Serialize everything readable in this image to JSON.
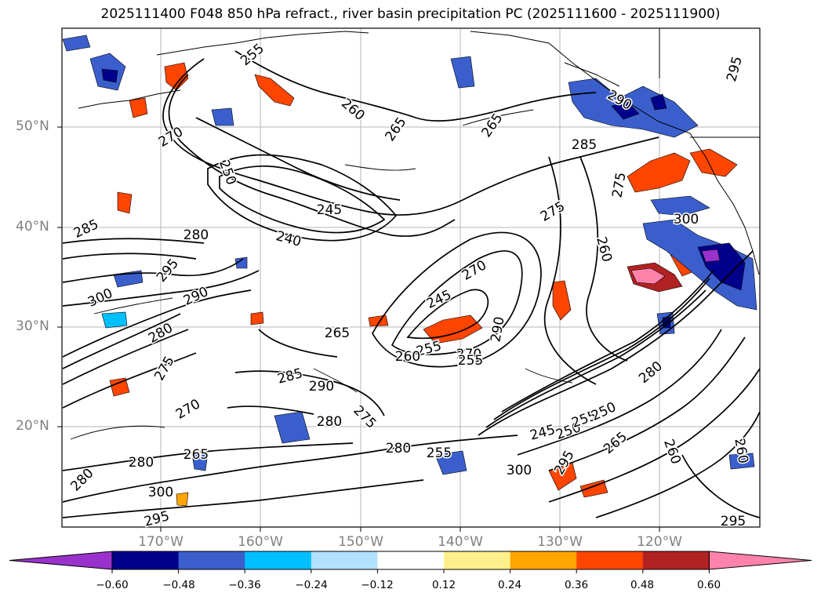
{
  "title": "2025111400 F048 850 hPa refract., river basin precipitation PC (2025111600 - 2025111900)",
  "lat_labels": [
    "50°N",
    "40°N",
    "30°N",
    "20°N"
  ],
  "lon_labels": [
    "170°W",
    "160°W",
    "150°W",
    "140°W",
    "130°W",
    "120°W"
  ],
  "colorbar": {
    "ticks": [
      "−0.60",
      "−0.48",
      "−0.36",
      "−0.24",
      "−0.12",
      "0.12",
      "0.24",
      "0.36",
      "0.48",
      "0.60"
    ],
    "colors": [
      "#9932cc",
      "#00008b",
      "#3a5fcd",
      "#00bfff",
      "#b0e2ff",
      "#ffffff",
      "#fff08c",
      "#ffa500",
      "#ff4500",
      "#b22222",
      "#ff82ab"
    ]
  },
  "contour_labels": [
    "255",
    "260",
    "265",
    "270",
    "250",
    "245",
    "240",
    "265",
    "285",
    "295",
    "300",
    "290",
    "280",
    "275",
    "270",
    "285",
    "290",
    "280",
    "275",
    "280",
    "300",
    "295",
    "260",
    "265",
    "270",
    "275",
    "280",
    "250",
    "245",
    "255",
    "290",
    "270",
    "280",
    "300",
    "295",
    "255",
    "260",
    "265",
    "280",
    "285",
    "290",
    "295",
    "275",
    "280",
    "300",
    "255",
    "250",
    "245",
    "265",
    "260",
    "255",
    "295",
    "260"
  ]
}
